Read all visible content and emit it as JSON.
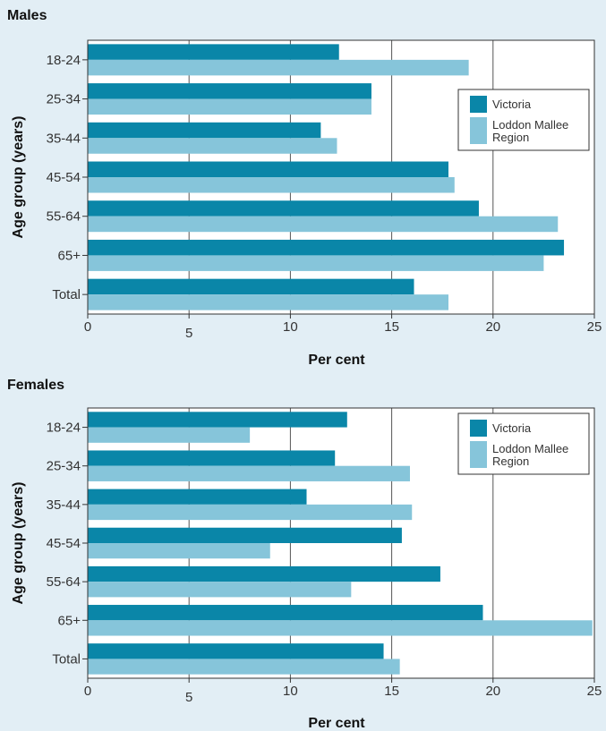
{
  "chart_data": [
    {
      "type": "bar",
      "orientation": "horizontal",
      "title": "Males",
      "xlabel": "Per cent",
      "ylabel": "Age group (years)",
      "categories": [
        "18-24",
        "25-34",
        "35-44",
        "45-54",
        "55-64",
        "65+",
        "Total"
      ],
      "xlim": [
        0,
        25
      ],
      "xticks": [
        0,
        5,
        10,
        15,
        20,
        25
      ],
      "grid": "vertical",
      "legend_position": "right",
      "series": [
        {
          "name": "Victoria",
          "color": "#0a86a8",
          "values": [
            12.4,
            14.0,
            11.5,
            17.8,
            19.3,
            23.5,
            16.1
          ]
        },
        {
          "name": "Loddon Mallee Region",
          "color": "#86c5da",
          "values": [
            18.8,
            14.0,
            12.3,
            18.1,
            23.2,
            22.5,
            17.8
          ]
        }
      ]
    },
    {
      "type": "bar",
      "orientation": "horizontal",
      "title": "Females",
      "xlabel": "Per cent",
      "ylabel": "Age group (years)",
      "categories": [
        "18-24",
        "25-34",
        "35-44",
        "45-54",
        "55-64",
        "65+",
        "Total"
      ],
      "xlim": [
        0,
        25
      ],
      "xticks": [
        0,
        5,
        10,
        15,
        20,
        25
      ],
      "grid": "vertical",
      "legend_position": "top-right",
      "series": [
        {
          "name": "Victoria",
          "color": "#0a86a8",
          "values": [
            12.8,
            12.2,
            10.8,
            15.5,
            17.4,
            19.5,
            14.6
          ]
        },
        {
          "name": "Loddon Mallee Region",
          "color": "#86c5da",
          "values": [
            8.0,
            15.9,
            16.0,
            9.0,
            13.0,
            24.9,
            15.4
          ]
        }
      ]
    }
  ]
}
